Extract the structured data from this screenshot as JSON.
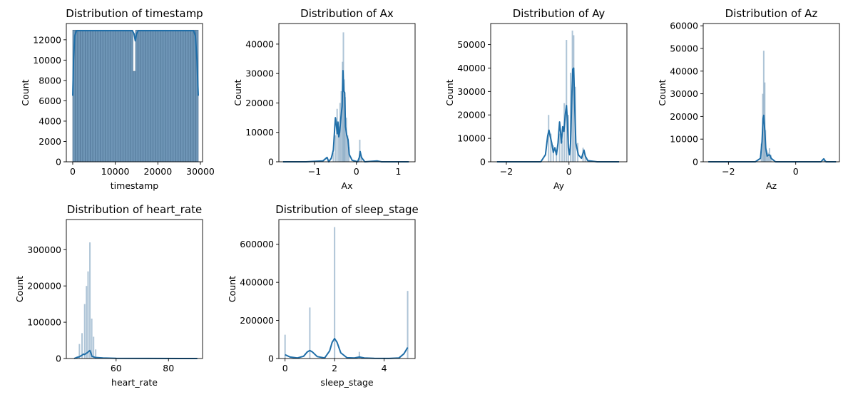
{
  "chart_data": [
    {
      "type": "bar",
      "title": "Distribution of timestamp",
      "xlabel": "timestamp",
      "ylabel": "Count",
      "xlim": [
        -1500,
        30500
      ],
      "ylim": [
        0,
        13600
      ],
      "xticks": [
        {
          "v": 0,
          "label": "0"
        },
        {
          "v": 10000,
          "label": "10000"
        },
        {
          "v": 20000,
          "label": "20000"
        },
        {
          "v": 30000,
          "label": "30000"
        }
      ],
      "yticks": [
        {
          "v": 0,
          "label": "0"
        },
        {
          "v": 2000,
          "label": "2000"
        },
        {
          "v": 4000,
          "label": "4000"
        },
        {
          "v": 6000,
          "label": "6000"
        },
        {
          "v": 8000,
          "label": "8000"
        },
        {
          "v": 10000,
          "label": "10000"
        },
        {
          "v": 12000,
          "label": "12000"
        }
      ],
      "bins": {
        "start": 0,
        "width": 590,
        "count": 50,
        "value": 12950,
        "dips": [
          {
            "index": 24,
            "value": 8900
          }
        ]
      },
      "kde": [
        [
          0,
          6500
        ],
        [
          200,
          10000
        ],
        [
          500,
          12400
        ],
        [
          900,
          12900
        ],
        [
          14000,
          12900
        ],
        [
          14400,
          12600
        ],
        [
          14700,
          11900
        ],
        [
          15000,
          12600
        ],
        [
          15400,
          12900
        ],
        [
          28400,
          12900
        ],
        [
          28800,
          12400
        ],
        [
          29200,
          10000
        ],
        [
          29500,
          6500
        ]
      ]
    },
    {
      "type": "bar",
      "title": "Distribution of Ax",
      "xlabel": "Ax",
      "ylabel": "Count",
      "xlim": [
        -1.85,
        1.4
      ],
      "ylim": [
        0,
        47000
      ],
      "xticks": [
        {
          "v": -1,
          "label": "−1"
        },
        {
          "v": 0,
          "label": "0"
        },
        {
          "v": 1,
          "label": "1"
        }
      ],
      "yticks": [
        {
          "v": 0,
          "label": "0"
        },
        {
          "v": 10000,
          "label": "10000"
        },
        {
          "v": 20000,
          "label": "20000"
        },
        {
          "v": 30000,
          "label": "30000"
        },
        {
          "v": 40000,
          "label": "40000"
        }
      ],
      "bars": [
        [
          -0.55,
          3000
        ],
        [
          -0.5,
          9000
        ],
        [
          -0.46,
          18000
        ],
        [
          -0.42,
          12000
        ],
        [
          -0.39,
          20000
        ],
        [
          -0.36,
          24000
        ],
        [
          -0.33,
          34000
        ],
        [
          -0.31,
          44000
        ],
        [
          -0.29,
          28000
        ],
        [
          -0.27,
          22000
        ],
        [
          -0.24,
          15000
        ],
        [
          -0.21,
          9000
        ],
        [
          -0.18,
          5000
        ],
        [
          0.08,
          7500
        ],
        [
          0.12,
          2000
        ]
      ],
      "kde": [
        [
          -1.75,
          0
        ],
        [
          -1.2,
          0
        ],
        [
          -0.8,
          300
        ],
        [
          -0.7,
          1500
        ],
        [
          -0.66,
          0
        ],
        [
          -0.6,
          1200
        ],
        [
          -0.55,
          4000
        ],
        [
          -0.52,
          11000
        ],
        [
          -0.5,
          15000
        ],
        [
          -0.48,
          13000
        ],
        [
          -0.46,
          9500
        ],
        [
          -0.44,
          13500
        ],
        [
          -0.42,
          8500
        ],
        [
          -0.4,
          10000
        ],
        [
          -0.37,
          15000
        ],
        [
          -0.34,
          19000
        ],
        [
          -0.32,
          31000
        ],
        [
          -0.3,
          24000
        ],
        [
          -0.28,
          23500
        ],
        [
          -0.26,
          12000
        ],
        [
          -0.23,
          9000
        ],
        [
          -0.2,
          7500
        ],
        [
          -0.17,
          2500
        ],
        [
          -0.1,
          500
        ],
        [
          0.03,
          0
        ],
        [
          0.07,
          1500
        ],
        [
          0.09,
          3500
        ],
        [
          0.12,
          1500
        ],
        [
          0.2,
          0
        ],
        [
          0.5,
          300
        ],
        [
          0.6,
          0
        ],
        [
          1.25,
          0
        ]
      ]
    },
    {
      "type": "bar",
      "title": "Distribution of Ay",
      "xlabel": "Ay",
      "ylabel": "Count",
      "xlim": [
        -2.5,
        1.85
      ],
      "ylim": [
        0,
        59000
      ],
      "xticks": [
        {
          "v": -2,
          "label": "−2"
        },
        {
          "v": 0,
          "label": "0"
        }
      ],
      "yticks": [
        {
          "v": 0,
          "label": "0"
        },
        {
          "v": 10000,
          "label": "10000"
        },
        {
          "v": 20000,
          "label": "20000"
        },
        {
          "v": 30000,
          "label": "30000"
        },
        {
          "v": 40000,
          "label": "40000"
        },
        {
          "v": 50000,
          "label": "50000"
        }
      ],
      "bars": [
        [
          -0.65,
          20000
        ],
        [
          -0.58,
          12000
        ],
        [
          -0.5,
          7000
        ],
        [
          -0.4,
          5000
        ],
        [
          -0.3,
          12000
        ],
        [
          -0.22,
          9000
        ],
        [
          -0.15,
          25000
        ],
        [
          -0.08,
          52000
        ],
        [
          -0.02,
          20000
        ],
        [
          0.05,
          38000
        ],
        [
          0.11,
          56000
        ],
        [
          0.15,
          54000
        ],
        [
          0.2,
          32000
        ],
        [
          0.28,
          8000
        ],
        [
          0.45,
          6000
        ],
        [
          0.52,
          3000
        ]
      ],
      "kde": [
        [
          -2.3,
          0
        ],
        [
          -1.5,
          0
        ],
        [
          -0.9,
          0
        ],
        [
          -0.75,
          3000
        ],
        [
          -0.68,
          11000
        ],
        [
          -0.64,
          13500
        ],
        [
          -0.6,
          11000
        ],
        [
          -0.55,
          8000
        ],
        [
          -0.5,
          4000
        ],
        [
          -0.45,
          6000
        ],
        [
          -0.4,
          3000
        ],
        [
          -0.35,
          8000
        ],
        [
          -0.3,
          17000
        ],
        [
          -0.27,
          13000
        ],
        [
          -0.24,
          8000
        ],
        [
          -0.2,
          15000
        ],
        [
          -0.16,
          13000
        ],
        [
          -0.12,
          20000
        ],
        [
          -0.08,
          24000
        ],
        [
          -0.05,
          17000
        ],
        [
          -0.02,
          6000
        ],
        [
          0.02,
          3000
        ],
        [
          0.05,
          8000
        ],
        [
          0.09,
          27000
        ],
        [
          0.12,
          39500
        ],
        [
          0.15,
          40000
        ],
        [
          0.18,
          25000
        ],
        [
          0.22,
          8000
        ],
        [
          0.3,
          3000
        ],
        [
          0.4,
          1500
        ],
        [
          0.48,
          5000
        ],
        [
          0.52,
          2500
        ],
        [
          0.6,
          500
        ],
        [
          0.9,
          0
        ],
        [
          1.6,
          0
        ]
      ]
    },
    {
      "type": "bar",
      "title": "Distribution of Az",
      "xlabel": "Az",
      "ylabel": "Count",
      "xlim": [
        -2.75,
        1.3
      ],
      "ylim": [
        0,
        61000
      ],
      "xticks": [
        {
          "v": -2,
          "label": "−2"
        },
        {
          "v": 0,
          "label": "0"
        }
      ],
      "yticks": [
        {
          "v": 0,
          "label": "0"
        },
        {
          "v": 10000,
          "label": "10000"
        },
        {
          "v": 20000,
          "label": "20000"
        },
        {
          "v": 30000,
          "label": "30000"
        },
        {
          "v": 40000,
          "label": "40000"
        },
        {
          "v": 50000,
          "label": "50000"
        },
        {
          "v": 60000,
          "label": "60000"
        }
      ],
      "bars": [
        [
          -1.02,
          8000
        ],
        [
          -0.98,
          30000
        ],
        [
          -0.95,
          49000
        ],
        [
          -0.92,
          35000
        ],
        [
          -0.9,
          14000
        ],
        [
          -0.86,
          5000
        ],
        [
          -0.82,
          4000
        ],
        [
          -0.78,
          6000
        ],
        [
          -0.74,
          3000
        ],
        [
          0.85,
          1500
        ]
      ],
      "kde": [
        [
          -2.6,
          0
        ],
        [
          -1.2,
          0
        ],
        [
          -1.05,
          1500
        ],
        [
          -1.0,
          9000
        ],
        [
          -0.97,
          19000
        ],
        [
          -0.95,
          20500
        ],
        [
          -0.92,
          14000
        ],
        [
          -0.89,
          6000
        ],
        [
          -0.85,
          2500
        ],
        [
          -0.81,
          3000
        ],
        [
          -0.77,
          3000
        ],
        [
          -0.73,
          1500
        ],
        [
          -0.6,
          0
        ],
        [
          0.75,
          0
        ],
        [
          0.83,
          1300
        ],
        [
          0.9,
          0
        ],
        [
          1.2,
          0
        ]
      ]
    },
    {
      "type": "bar",
      "title": "Distribution of heart_rate",
      "xlabel": "heart_rate",
      "ylabel": "Count",
      "xlim": [
        41,
        93
      ],
      "ylim": [
        0,
        383000
      ],
      "xticks": [
        {
          "v": 60,
          "label": "60"
        },
        {
          "v": 80,
          "label": "80"
        }
      ],
      "yticks": [
        {
          "v": 0,
          "label": "0"
        },
        {
          "v": 100000,
          "label": "100000"
        },
        {
          "v": 200000,
          "label": "200000"
        },
        {
          "v": 300000,
          "label": "300000"
        }
      ],
      "bars": [
        [
          46,
          40000
        ],
        [
          47,
          70000
        ],
        [
          48,
          150000
        ],
        [
          48.7,
          200000
        ],
        [
          49.3,
          240000
        ],
        [
          50,
          320000
        ],
        [
          50.7,
          110000
        ],
        [
          51.4,
          60000
        ],
        [
          52.2,
          25000
        ]
      ],
      "kde": [
        [
          44,
          0
        ],
        [
          45,
          3000
        ],
        [
          46,
          5000
        ],
        [
          47,
          9000
        ],
        [
          47.5,
          12000
        ],
        [
          48,
          11000
        ],
        [
          48.5,
          14000
        ],
        [
          49,
          16000
        ],
        [
          49.5,
          19000
        ],
        [
          50,
          22000
        ],
        [
          50.4,
          15000
        ],
        [
          50.8,
          6000
        ],
        [
          52,
          3000
        ],
        [
          55,
          1500
        ],
        [
          60,
          500
        ],
        [
          91,
          0
        ]
      ]
    },
    {
      "type": "bar",
      "title": "Distribution of sleep_stage",
      "xlabel": "sleep_stage",
      "ylabel": "Count",
      "xlim": [
        -0.25,
        5.25
      ],
      "ylim": [
        0,
        730000
      ],
      "xticks": [
        {
          "v": 0,
          "label": "0"
        },
        {
          "v": 2,
          "label": "2"
        },
        {
          "v": 4,
          "label": "4"
        }
      ],
      "yticks": [
        {
          "v": 0,
          "label": "0"
        },
        {
          "v": 200000,
          "label": "200000"
        },
        {
          "v": 400000,
          "label": "400000"
        },
        {
          "v": 600000,
          "label": "600000"
        }
      ],
      "bars": [
        [
          0,
          125000
        ],
        [
          1,
          268000
        ],
        [
          2,
          690000
        ],
        [
          3,
          35000
        ],
        [
          4.95,
          355000
        ]
      ],
      "kde": [
        [
          0,
          20000
        ],
        [
          0.2,
          8000
        ],
        [
          0.5,
          3000
        ],
        [
          0.75,
          12000
        ],
        [
          0.9,
          35000
        ],
        [
          1,
          42000
        ],
        [
          1.1,
          35000
        ],
        [
          1.3,
          10000
        ],
        [
          1.6,
          3000
        ],
        [
          1.8,
          40000
        ],
        [
          1.9,
          85000
        ],
        [
          2,
          105000
        ],
        [
          2.1,
          85000
        ],
        [
          2.25,
          30000
        ],
        [
          2.5,
          4000
        ],
        [
          2.8,
          3000
        ],
        [
          3,
          8000
        ],
        [
          3.2,
          3000
        ],
        [
          3.6,
          1000
        ],
        [
          4.2,
          500
        ],
        [
          4.6,
          3000
        ],
        [
          4.8,
          25000
        ],
        [
          4.95,
          58000
        ]
      ]
    }
  ]
}
